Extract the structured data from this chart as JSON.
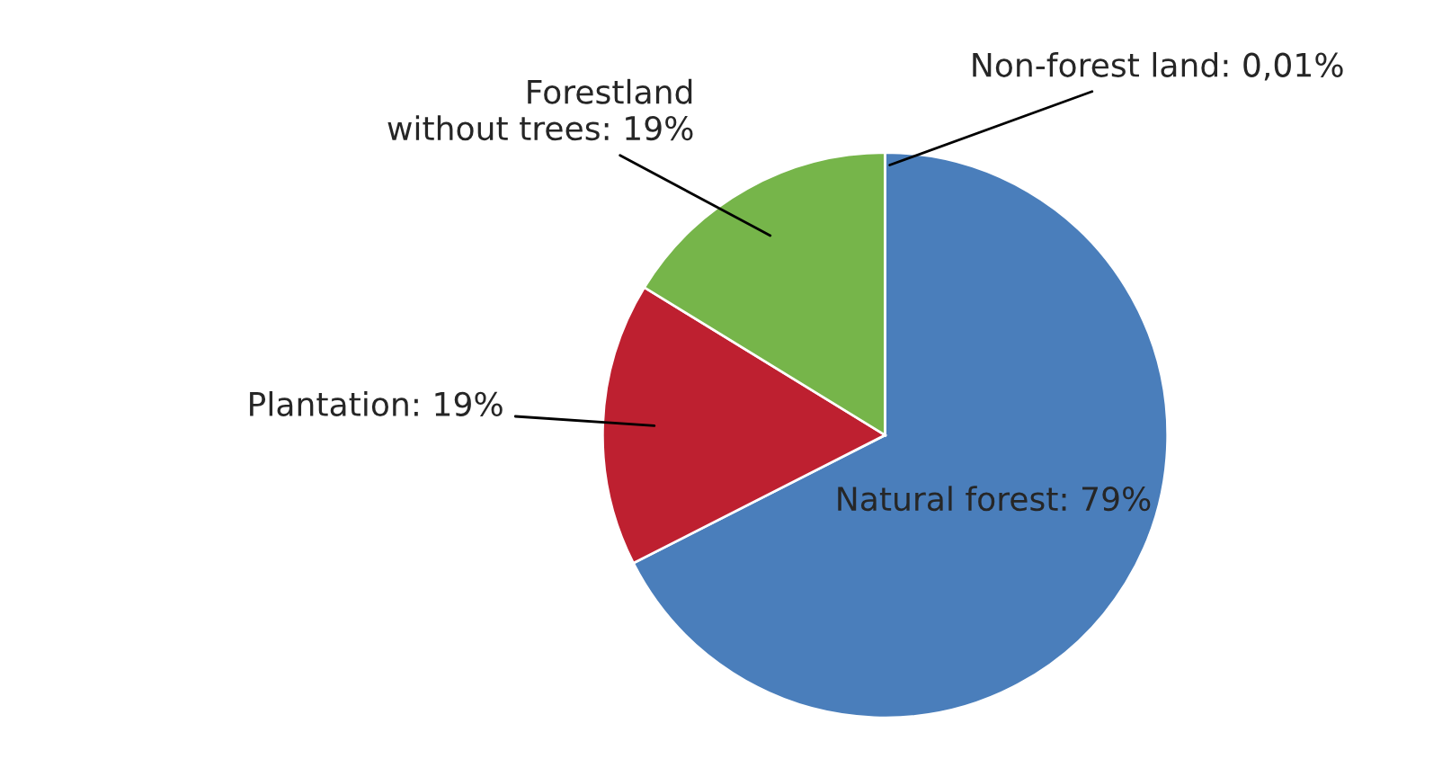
{
  "chart_data": {
    "type": "pie",
    "categories": [
      "Natural forest",
      "Plantation",
      "Forestland\nwithout trees",
      "Non-forest land"
    ],
    "values": [
      79,
      19,
      19,
      0.01
    ],
    "value_labels": [
      "79%",
      "19%",
      "19%",
      "0,01%"
    ],
    "colors": [
      "#4a7ebb",
      "#be2030",
      "#76b54a",
      "#f5a623"
    ],
    "legend": false
  }
}
